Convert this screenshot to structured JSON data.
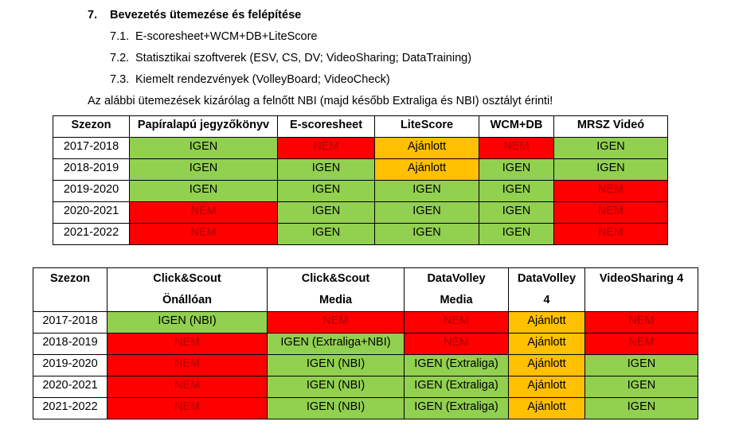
{
  "heading": {
    "number": "7.",
    "title": "Bevezetés ütemezése és felépítése"
  },
  "subitems": [
    {
      "number": "7.1.",
      "text": "E-scoresheet+WCM+DB+LiteScore"
    },
    {
      "number": "7.2.",
      "text": "Statisztikai szoftverek (ESV, CS, DV; VideoSharing; DataTraining)"
    },
    {
      "number": "7.3.",
      "text": "Kiemelt rendezvények (VolleyBoard; VideoCheck)"
    }
  ],
  "note": "Az alábbi ütemezések kizárólag a felnőtt NBI (majd később Extraliga és NBI) osztályt érinti!",
  "colors": {
    "yes": "#92d050",
    "no": "#ff0000",
    "recommended": "#ffc000"
  },
  "table1": {
    "headers": [
      "Szezon",
      "Papíralapú jegyzőkönyv",
      "E-scoresheet",
      "LiteScore",
      "WCM+DB",
      "MRSZ Videó"
    ],
    "rows": [
      [
        "2017-2018",
        "IGEN",
        "NEM",
        "Ajánlott",
        "NEM",
        "IGEN"
      ],
      [
        "2018-2019",
        "IGEN",
        "IGEN",
        "Ajánlott",
        "IGEN",
        "IGEN"
      ],
      [
        "2019-2020",
        "IGEN",
        "IGEN",
        "IGEN",
        "IGEN",
        "NEM"
      ],
      [
        "2020-2021",
        "NEM",
        "IGEN",
        "IGEN",
        "IGEN",
        "NEM"
      ],
      [
        "2021-2022",
        "NEM",
        "IGEN",
        "IGEN",
        "IGEN",
        "NEM"
      ]
    ]
  },
  "table2": {
    "headers": [
      [
        "Szezon",
        ""
      ],
      [
        "Click&Scout",
        "Önállóan"
      ],
      [
        "Click&Scout",
        "Media"
      ],
      [
        "DataVolley",
        "Media"
      ],
      [
        "DataVolley",
        "4"
      ],
      [
        "VideoSharing 4",
        ""
      ]
    ],
    "rows": [
      [
        "2017-2018",
        "IGEN (NBI)",
        "NEM",
        "NEM",
        "Ajánlott",
        "NEM"
      ],
      [
        "2018-2019",
        "NEM",
        "IGEN (Extraliga+NBI)",
        "NEM",
        "Ajánlott",
        "NEM"
      ],
      [
        "2019-2020",
        "NEM",
        "IGEN (NBI)",
        "IGEN (Extraliga)",
        "Ajánlott",
        "IGEN"
      ],
      [
        "2020-2021",
        "NEM",
        "IGEN (NBI)",
        "IGEN (Extraliga)",
        "Ajánlott",
        "IGEN"
      ],
      [
        "2021-2022",
        "NEM",
        "IGEN (NBI)",
        "IGEN (Extraliga)",
        "Ajánlott",
        "IGEN"
      ]
    ]
  }
}
